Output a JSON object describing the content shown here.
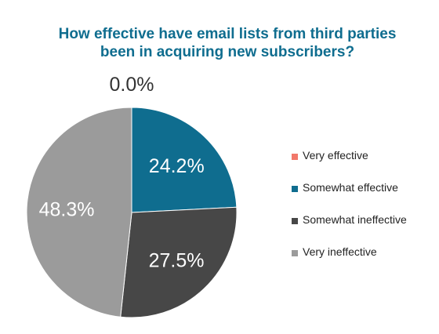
{
  "title_lines": [
    "How effective have email lists from third parties",
    "been in acquiring new subscribers?"
  ],
  "chart_data": {
    "type": "pie",
    "title": "How effective have email lists from third parties been in acquiring new subscribers?",
    "categories": [
      "Very effective",
      "Somewhat effective",
      "Somewhat ineffective",
      "Very ineffective"
    ],
    "values": [
      0.0,
      24.2,
      27.5,
      48.3
    ],
    "labels": [
      "0.0%",
      "24.2%",
      "27.5%",
      "48.3%"
    ],
    "colors": [
      "#f2786a",
      "#0f6d8f",
      "#474747",
      "#9b9b9b"
    ],
    "legend_position": "right"
  }
}
